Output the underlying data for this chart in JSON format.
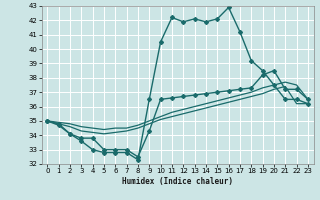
{
  "xlabel": "Humidex (Indice chaleur)",
  "xlim": [
    -0.5,
    23.5
  ],
  "ylim": [
    32,
    43
  ],
  "yticks": [
    32,
    33,
    34,
    35,
    36,
    37,
    38,
    39,
    40,
    41,
    42,
    43
  ],
  "xticks": [
    0,
    1,
    2,
    3,
    4,
    5,
    6,
    7,
    8,
    9,
    10,
    11,
    12,
    13,
    14,
    15,
    16,
    17,
    18,
    19,
    20,
    21,
    22,
    23
  ],
  "bg_color": "#cce5e5",
  "line_color": "#1a6b6b",
  "grid_color": "#ffffff",
  "lines": [
    {
      "x": [
        0,
        1,
        2,
        3,
        4,
        5,
        6,
        7,
        8,
        9,
        10,
        11,
        12,
        13,
        14,
        15,
        16,
        17,
        18,
        19,
        20,
        21,
        22,
        23
      ],
      "y": [
        35.0,
        34.8,
        34.1,
        33.6,
        33.0,
        32.8,
        32.8,
        32.8,
        32.3,
        36.5,
        40.5,
        42.2,
        41.9,
        42.1,
        41.9,
        42.1,
        42.9,
        41.2,
        39.2,
        38.5,
        37.5,
        36.5,
        36.5,
        36.2
      ],
      "marker": "D",
      "markersize": 2.0,
      "linewidth": 1.0
    },
    {
      "x": [
        0,
        1,
        2,
        3,
        4,
        5,
        6,
        7,
        8,
        9,
        10,
        11,
        12,
        13,
        14,
        15,
        16,
        17,
        18,
        19,
        20,
        21,
        22,
        23
      ],
      "y": [
        35.0,
        34.9,
        34.8,
        34.6,
        34.5,
        34.4,
        34.5,
        34.5,
        34.7,
        35.0,
        35.3,
        35.6,
        35.8,
        36.0,
        36.2,
        36.4,
        36.6,
        36.8,
        37.0,
        37.3,
        37.5,
        37.7,
        37.5,
        36.5
      ],
      "marker": null,
      "markersize": 0,
      "linewidth": 0.9
    },
    {
      "x": [
        0,
        1,
        2,
        3,
        4,
        5,
        6,
        7,
        8,
        9,
        10,
        11,
        12,
        13,
        14,
        15,
        16,
        17,
        18,
        19,
        20,
        21,
        22,
        23
      ],
      "y": [
        35.0,
        34.8,
        34.6,
        34.3,
        34.2,
        34.1,
        34.2,
        34.3,
        34.5,
        34.8,
        35.1,
        35.3,
        35.5,
        35.7,
        35.9,
        36.1,
        36.3,
        36.5,
        36.7,
        36.9,
        37.2,
        37.4,
        36.2,
        36.2
      ],
      "marker": null,
      "markersize": 0,
      "linewidth": 0.9
    },
    {
      "x": [
        0,
        1,
        2,
        3,
        4,
        5,
        6,
        7,
        8,
        9,
        10,
        11,
        12,
        13,
        14,
        15,
        16,
        17,
        18,
        19,
        20,
        21,
        22,
        23
      ],
      "y": [
        35.0,
        34.7,
        34.1,
        33.8,
        33.8,
        33.0,
        33.0,
        33.0,
        32.5,
        34.3,
        36.5,
        36.6,
        36.7,
        36.8,
        36.9,
        37.0,
        37.1,
        37.2,
        37.3,
        38.2,
        38.5,
        37.2,
        37.2,
        36.5
      ],
      "marker": "D",
      "markersize": 2.0,
      "linewidth": 1.0
    }
  ]
}
